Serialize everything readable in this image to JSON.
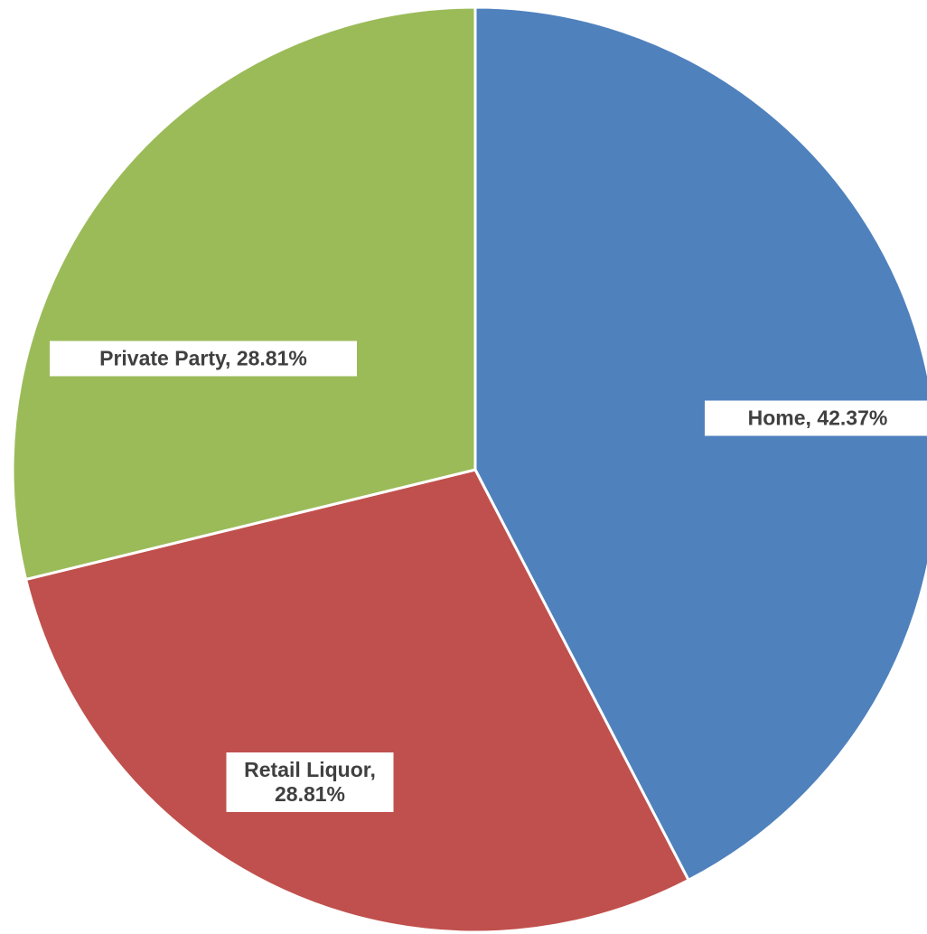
{
  "chart_data": {
    "type": "pie",
    "values": [
      42.37,
      28.81,
      28.81
    ],
    "value_labels": [
      "Home, 42.37%",
      "Retail Liquor, 28.81%",
      "Private Party, 28.81%"
    ],
    "colors": [
      "#4f81bd",
      "#c0504d",
      "#9bbb59"
    ]
  }
}
